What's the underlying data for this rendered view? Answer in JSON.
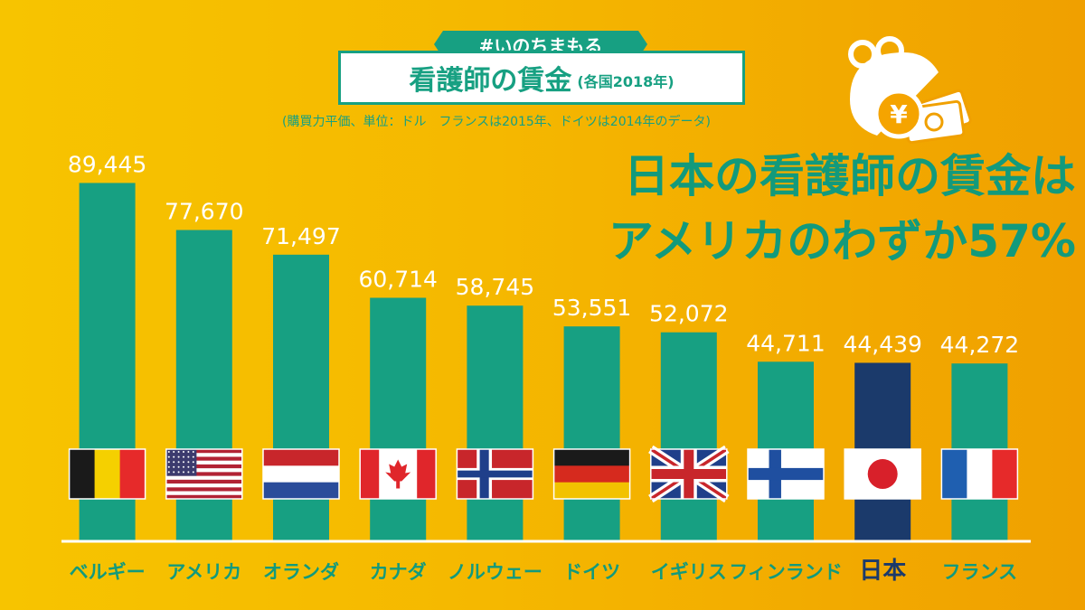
{
  "hashtag": "#いのちまもる",
  "title": {
    "main": "看護師の賃金",
    "sub": "(各国2018年)"
  },
  "note": "(購買力平価、単位：ドル　フランスは2015年、ドイツは2014年のデータ)",
  "headline": {
    "line1": "日本の看護師の賃金は",
    "line2": "アメリカのわずか57%"
  },
  "colors": {
    "bar": "#17a082",
    "highlight_bar": "#1b3a6b",
    "accent_text": "#129a7c",
    "value_label": "#ffffff",
    "axis_line": "#ffffff",
    "background_start": "#f7c400",
    "background_end": "#f0a000"
  },
  "chart_data": {
    "type": "bar",
    "categories": [
      "ベルギー",
      "アメリカ",
      "オランダ",
      "カナダ",
      "ノルウェー",
      "ドイツ",
      "イギリス",
      "フィンランド",
      "日本",
      "フランス"
    ],
    "values": [
      89445,
      77670,
      71497,
      60714,
      58745,
      53551,
      52072,
      44711,
      44439,
      44272
    ],
    "value_labels": [
      "89,445",
      "77,670",
      "71,497",
      "60,714",
      "58,745",
      "53,551",
      "52,072",
      "44,711",
      "44,439",
      "44,272"
    ],
    "flags": [
      "belgium-flag",
      "usa-flag",
      "netherlands-flag",
      "canada-flag",
      "norway-flag",
      "germany-flag",
      "uk-flag",
      "finland-flag",
      "japan-flag",
      "france-flag"
    ],
    "highlight": "日本",
    "title": "看護師の賃金",
    "xlabel": "",
    "ylabel": "",
    "ylim": [
      0,
      100000
    ],
    "grid": false,
    "legend": "none"
  }
}
